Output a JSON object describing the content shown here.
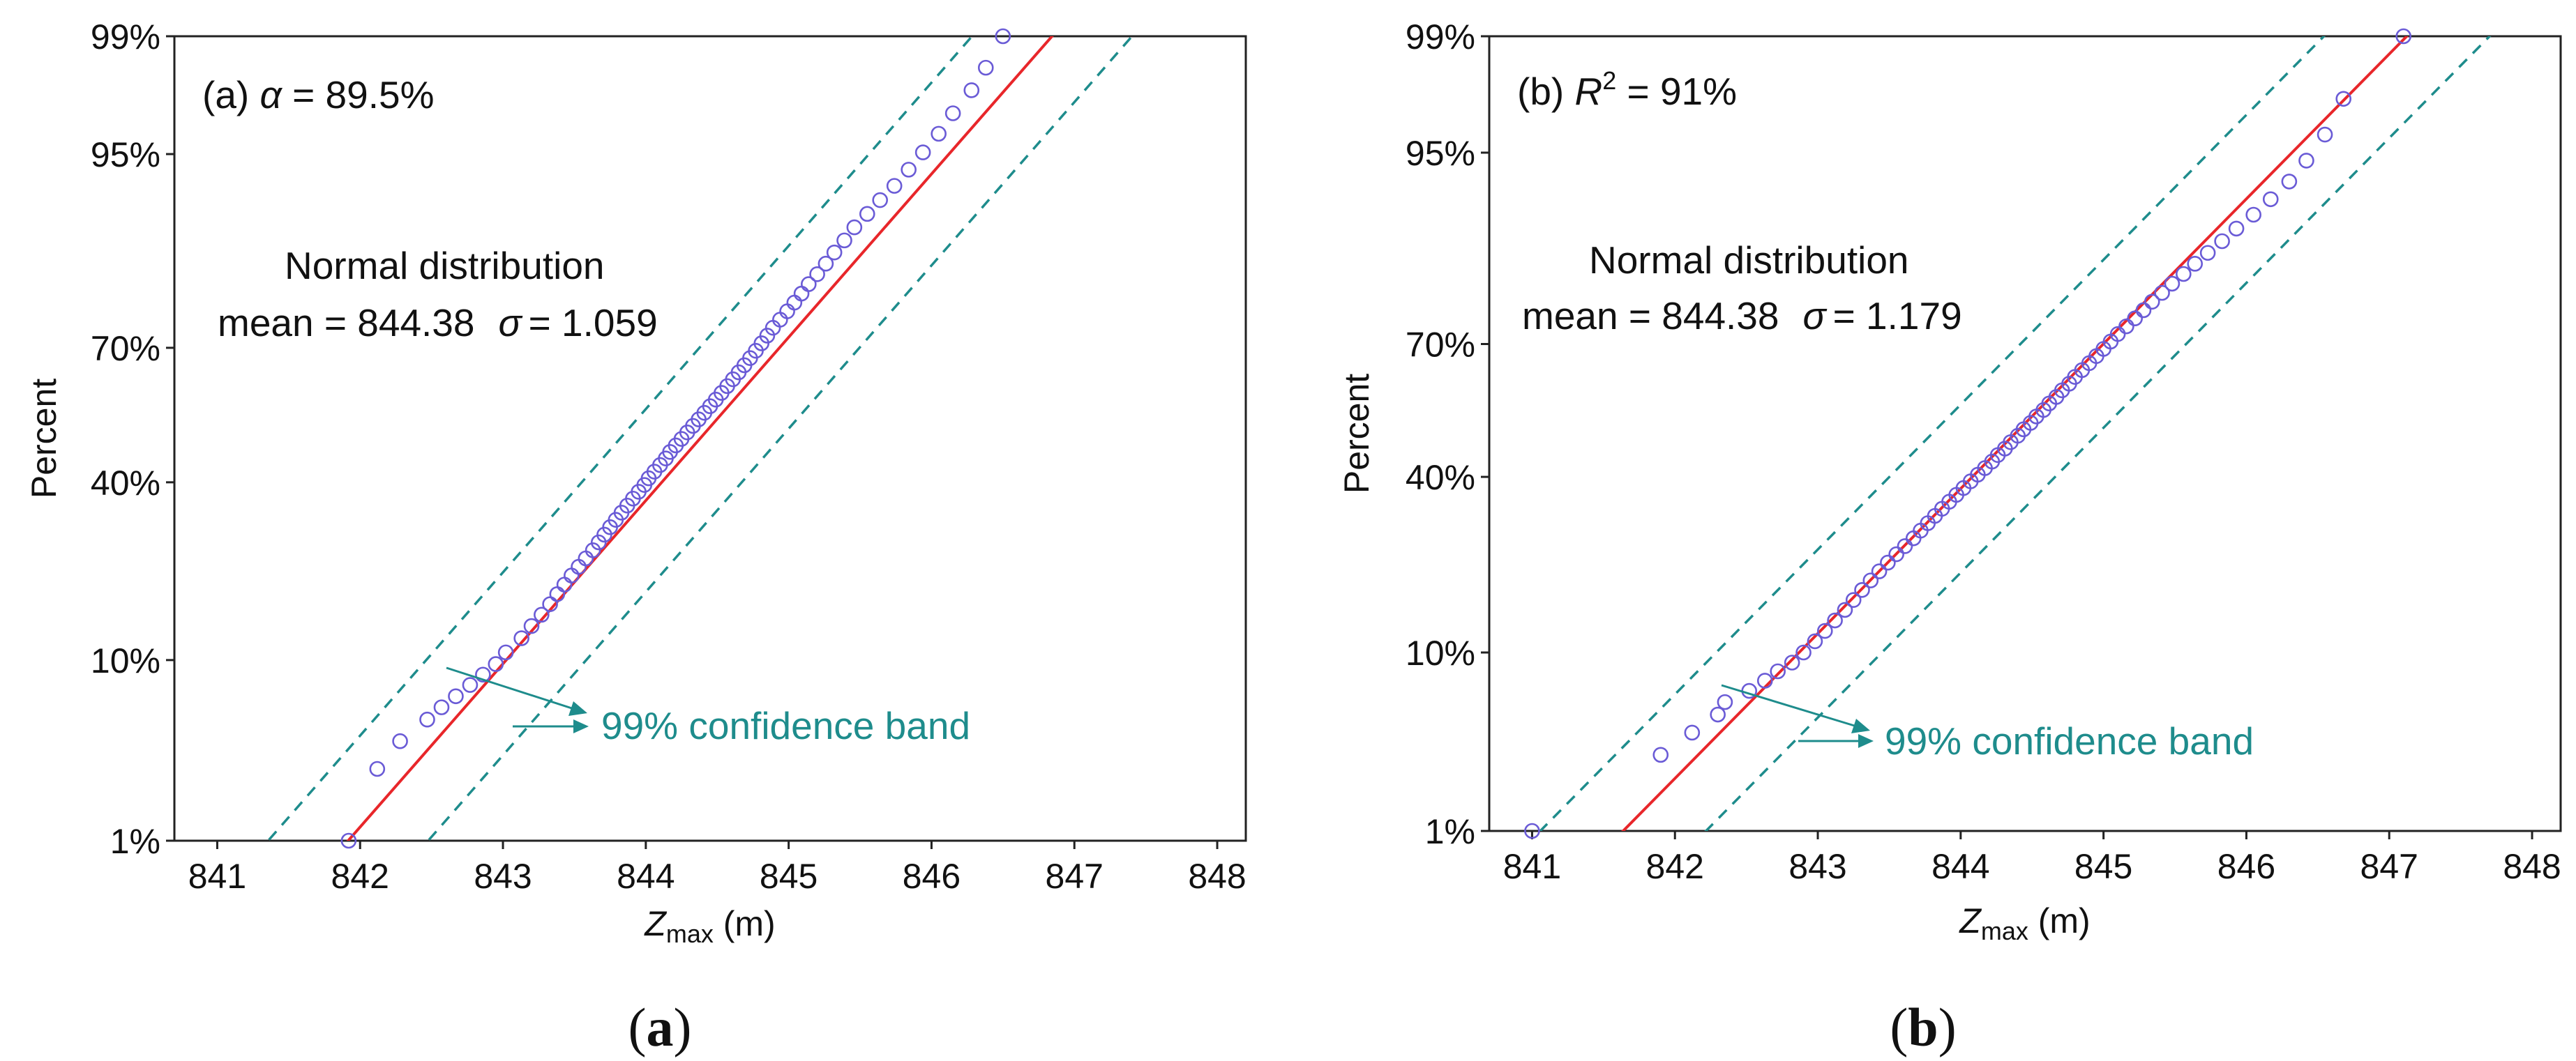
{
  "chart_data": [
    {
      "type": "scatter",
      "panel": "a",
      "caption_letter": "a",
      "xlabel_main": "Z",
      "xlabel_sub": "max",
      "xlabel_unit": " (m)",
      "ylabel": "Percent",
      "xlim": [
        840.7,
        848.2
      ],
      "x_ticks": [
        841,
        842,
        843,
        844,
        845,
        846,
        847,
        848
      ],
      "y_ticks": [
        {
          "p": 0.99,
          "label": "99%"
        },
        {
          "p": 0.95,
          "label": "95%"
        },
        {
          "p": 0.7,
          "label": "70%"
        },
        {
          "p": 0.4,
          "label": "40%"
        },
        {
          "p": 0.1,
          "label": "10%"
        },
        {
          "p": 0.01,
          "label": "1%"
        }
      ],
      "stat_prefix": "(a) ",
      "stat_symbol": "α",
      "stat_value": " = 89.5%",
      "dist_name": "Normal distribution",
      "mean_text": "mean = 844.38",
      "sigma_symbol": "σ",
      "sigma_text": "= 1.059",
      "band_label": "99% confidence band",
      "fit": {
        "mean": 844.38,
        "sigma": 1.059
      },
      "band_offset": 0.56,
      "points": [
        [
          841.92,
          0.01
        ],
        [
          842.12,
          0.028
        ],
        [
          842.28,
          0.04
        ],
        [
          842.47,
          0.052
        ],
        [
          842.57,
          0.06
        ],
        [
          842.67,
          0.068
        ],
        [
          842.77,
          0.077
        ],
        [
          842.86,
          0.086
        ],
        [
          842.95,
          0.096
        ],
        [
          843.02,
          0.108
        ],
        [
          843.13,
          0.124
        ],
        [
          843.2,
          0.139
        ],
        [
          843.27,
          0.154
        ],
        [
          843.33,
          0.169
        ],
        [
          843.38,
          0.184
        ],
        [
          843.43,
          0.199
        ],
        [
          843.48,
          0.214
        ],
        [
          843.53,
          0.229
        ],
        [
          843.58,
          0.244
        ],
        [
          843.63,
          0.259
        ],
        [
          843.67,
          0.274
        ],
        [
          843.71,
          0.289
        ],
        [
          843.75,
          0.304
        ],
        [
          843.79,
          0.319
        ],
        [
          843.83,
          0.334
        ],
        [
          843.87,
          0.349
        ],
        [
          843.91,
          0.364
        ],
        [
          843.95,
          0.379
        ],
        [
          843.99,
          0.394
        ],
        [
          844.02,
          0.409
        ],
        [
          844.06,
          0.424
        ],
        [
          844.1,
          0.439
        ],
        [
          844.14,
          0.454
        ],
        [
          844.17,
          0.469
        ],
        [
          844.21,
          0.484
        ],
        [
          844.25,
          0.499
        ],
        [
          844.29,
          0.514
        ],
        [
          844.33,
          0.529
        ],
        [
          844.37,
          0.544
        ],
        [
          844.41,
          0.559
        ],
        [
          844.45,
          0.574
        ],
        [
          844.49,
          0.589
        ],
        [
          844.53,
          0.604
        ],
        [
          844.57,
          0.619
        ],
        [
          844.61,
          0.634
        ],
        [
          844.65,
          0.649
        ],
        [
          844.69,
          0.664
        ],
        [
          844.73,
          0.679
        ],
        [
          844.77,
          0.694
        ],
        [
          844.81,
          0.709
        ],
        [
          844.85,
          0.724
        ],
        [
          844.89,
          0.739
        ],
        [
          844.94,
          0.754
        ],
        [
          844.99,
          0.769
        ],
        [
          845.04,
          0.784
        ],
        [
          845.09,
          0.799
        ],
        [
          845.14,
          0.814
        ],
        [
          845.2,
          0.829
        ],
        [
          845.26,
          0.844
        ],
        [
          845.32,
          0.859
        ],
        [
          845.39,
          0.874
        ],
        [
          845.46,
          0.889
        ],
        [
          845.55,
          0.903
        ],
        [
          845.64,
          0.916
        ],
        [
          845.74,
          0.928
        ],
        [
          845.84,
          0.94
        ],
        [
          845.94,
          0.951
        ],
        [
          846.05,
          0.961
        ],
        [
          846.15,
          0.97
        ],
        [
          846.28,
          0.978
        ],
        [
          846.38,
          0.984
        ],
        [
          846.5,
          0.99
        ]
      ]
    },
    {
      "type": "scatter",
      "panel": "b",
      "caption_letter": "b",
      "xlabel_main": "Z",
      "xlabel_sub": "max",
      "xlabel_unit": " (m)",
      "ylabel": "Percent",
      "xlim": [
        840.7,
        848.2
      ],
      "x_ticks": [
        841,
        842,
        843,
        844,
        845,
        846,
        847,
        848
      ],
      "y_ticks": [
        {
          "p": 0.99,
          "label": "99%"
        },
        {
          "p": 0.95,
          "label": "95%"
        },
        {
          "p": 0.7,
          "label": "70%"
        },
        {
          "p": 0.4,
          "label": "40%"
        },
        {
          "p": 0.1,
          "label": "10%"
        },
        {
          "p": 0.01,
          "label": "1%"
        }
      ],
      "stat_prefix": "(b) ",
      "stat_symbol": "R",
      "stat_sup": "2",
      "stat_value": " = 91%",
      "dist_name": "Normal distribution",
      "mean_text": "mean = 844.38",
      "sigma_symbol": "σ",
      "sigma_text": "= 1.179",
      "band_label": "99% confidence band",
      "fit": {
        "mean": 844.38,
        "sigma": 1.179
      },
      "band_offset": 0.58,
      "points": [
        [
          841.0,
          0.01
        ],
        [
          841.9,
          0.03
        ],
        [
          842.12,
          0.04
        ],
        [
          842.3,
          0.05
        ],
        [
          842.35,
          0.058
        ],
        [
          842.52,
          0.066
        ],
        [
          842.63,
          0.074
        ],
        [
          842.72,
          0.082
        ],
        [
          842.82,
          0.09
        ],
        [
          842.9,
          0.1
        ],
        [
          842.98,
          0.112
        ],
        [
          843.05,
          0.124
        ],
        [
          843.12,
          0.137
        ],
        [
          843.19,
          0.151
        ],
        [
          843.25,
          0.165
        ],
        [
          843.31,
          0.18
        ],
        [
          843.37,
          0.195
        ],
        [
          843.43,
          0.21
        ],
        [
          843.49,
          0.225
        ],
        [
          843.55,
          0.24
        ],
        [
          843.61,
          0.255
        ],
        [
          843.67,
          0.27
        ],
        [
          843.72,
          0.285
        ],
        [
          843.77,
          0.3
        ],
        [
          843.82,
          0.315
        ],
        [
          843.87,
          0.33
        ],
        [
          843.92,
          0.345
        ],
        [
          843.97,
          0.36
        ],
        [
          844.02,
          0.375
        ],
        [
          844.07,
          0.39
        ],
        [
          844.12,
          0.405
        ],
        [
          844.17,
          0.42
        ],
        [
          844.22,
          0.435
        ],
        [
          844.26,
          0.45
        ],
        [
          844.31,
          0.465
        ],
        [
          844.35,
          0.48
        ],
        [
          844.4,
          0.495
        ],
        [
          844.44,
          0.51
        ],
        [
          844.49,
          0.525
        ],
        [
          844.53,
          0.54
        ],
        [
          844.58,
          0.555
        ],
        [
          844.62,
          0.57
        ],
        [
          844.67,
          0.585
        ],
        [
          844.71,
          0.6
        ],
        [
          844.76,
          0.615
        ],
        [
          844.8,
          0.63
        ],
        [
          844.85,
          0.645
        ],
        [
          844.9,
          0.66
        ],
        [
          844.95,
          0.675
        ],
        [
          845.0,
          0.69
        ],
        [
          845.05,
          0.705
        ],
        [
          845.1,
          0.72
        ],
        [
          845.16,
          0.735
        ],
        [
          845.22,
          0.75
        ],
        [
          845.28,
          0.765
        ],
        [
          845.34,
          0.78
        ],
        [
          845.41,
          0.795
        ],
        [
          845.48,
          0.81
        ],
        [
          845.56,
          0.825
        ],
        [
          845.64,
          0.84
        ],
        [
          845.73,
          0.855
        ],
        [
          845.83,
          0.87
        ],
        [
          845.93,
          0.885
        ],
        [
          846.05,
          0.9
        ],
        [
          846.17,
          0.915
        ],
        [
          846.3,
          0.93
        ],
        [
          846.42,
          0.945
        ],
        [
          846.55,
          0.96
        ],
        [
          846.68,
          0.975
        ],
        [
          847.1,
          0.99
        ]
      ]
    }
  ]
}
